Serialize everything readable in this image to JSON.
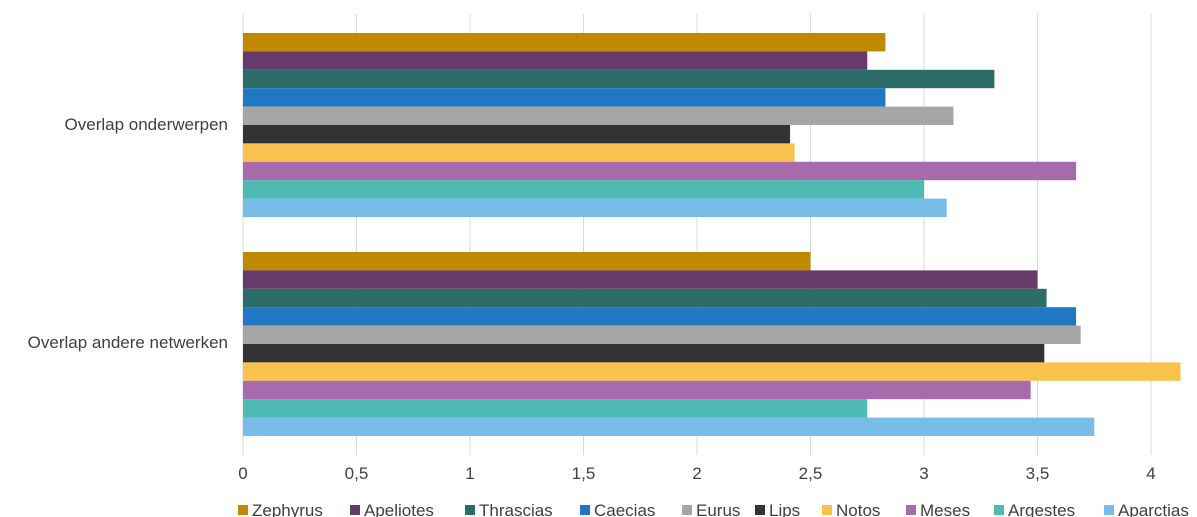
{
  "chart_data": {
    "type": "bar",
    "orientation": "horizontal",
    "categories": [
      "Overlap onderwerpen",
      "Overlap andere netwerken"
    ],
    "series": [
      {
        "name": "Zephyrus",
        "color": "#c08a00",
        "values": [
          2.83,
          2.5
        ]
      },
      {
        "name": "Apeliotes",
        "color": "#663a6b",
        "values": [
          2.75,
          3.5
        ]
      },
      {
        "name": "Thrascias",
        "color": "#2c6d67",
        "values": [
          3.31,
          3.54
        ]
      },
      {
        "name": "Caecias",
        "color": "#1f78c1",
        "values": [
          2.83,
          3.67
        ]
      },
      {
        "name": "Eurus",
        "color": "#a6a6a6",
        "values": [
          3.13,
          3.69
        ]
      },
      {
        "name": "Lips",
        "color": "#333333",
        "values": [
          2.41,
          3.53
        ]
      },
      {
        "name": "Notos",
        "color": "#f8c24d",
        "values": [
          2.43,
          4.13
        ]
      },
      {
        "name": "Meses",
        "color": "#a66aad",
        "values": [
          3.67,
          3.47
        ]
      },
      {
        "name": "Argestes",
        "color": "#4dbbb3",
        "values": [
          3.0,
          2.75
        ]
      },
      {
        "name": "Aparctias",
        "color": "#78bce8",
        "values": [
          3.1,
          3.75
        ]
      }
    ],
    "xlim": [
      0,
      4.2
    ],
    "xticks": [
      0,
      0.5,
      1,
      1.5,
      2,
      2.5,
      3,
      3.5,
      4
    ],
    "xtick_labels": [
      "0",
      "0,5",
      "1",
      "1,5",
      "2",
      "2,5",
      "3",
      "3,5",
      "4"
    ],
    "grid": true,
    "legend_position": "bottom"
  }
}
